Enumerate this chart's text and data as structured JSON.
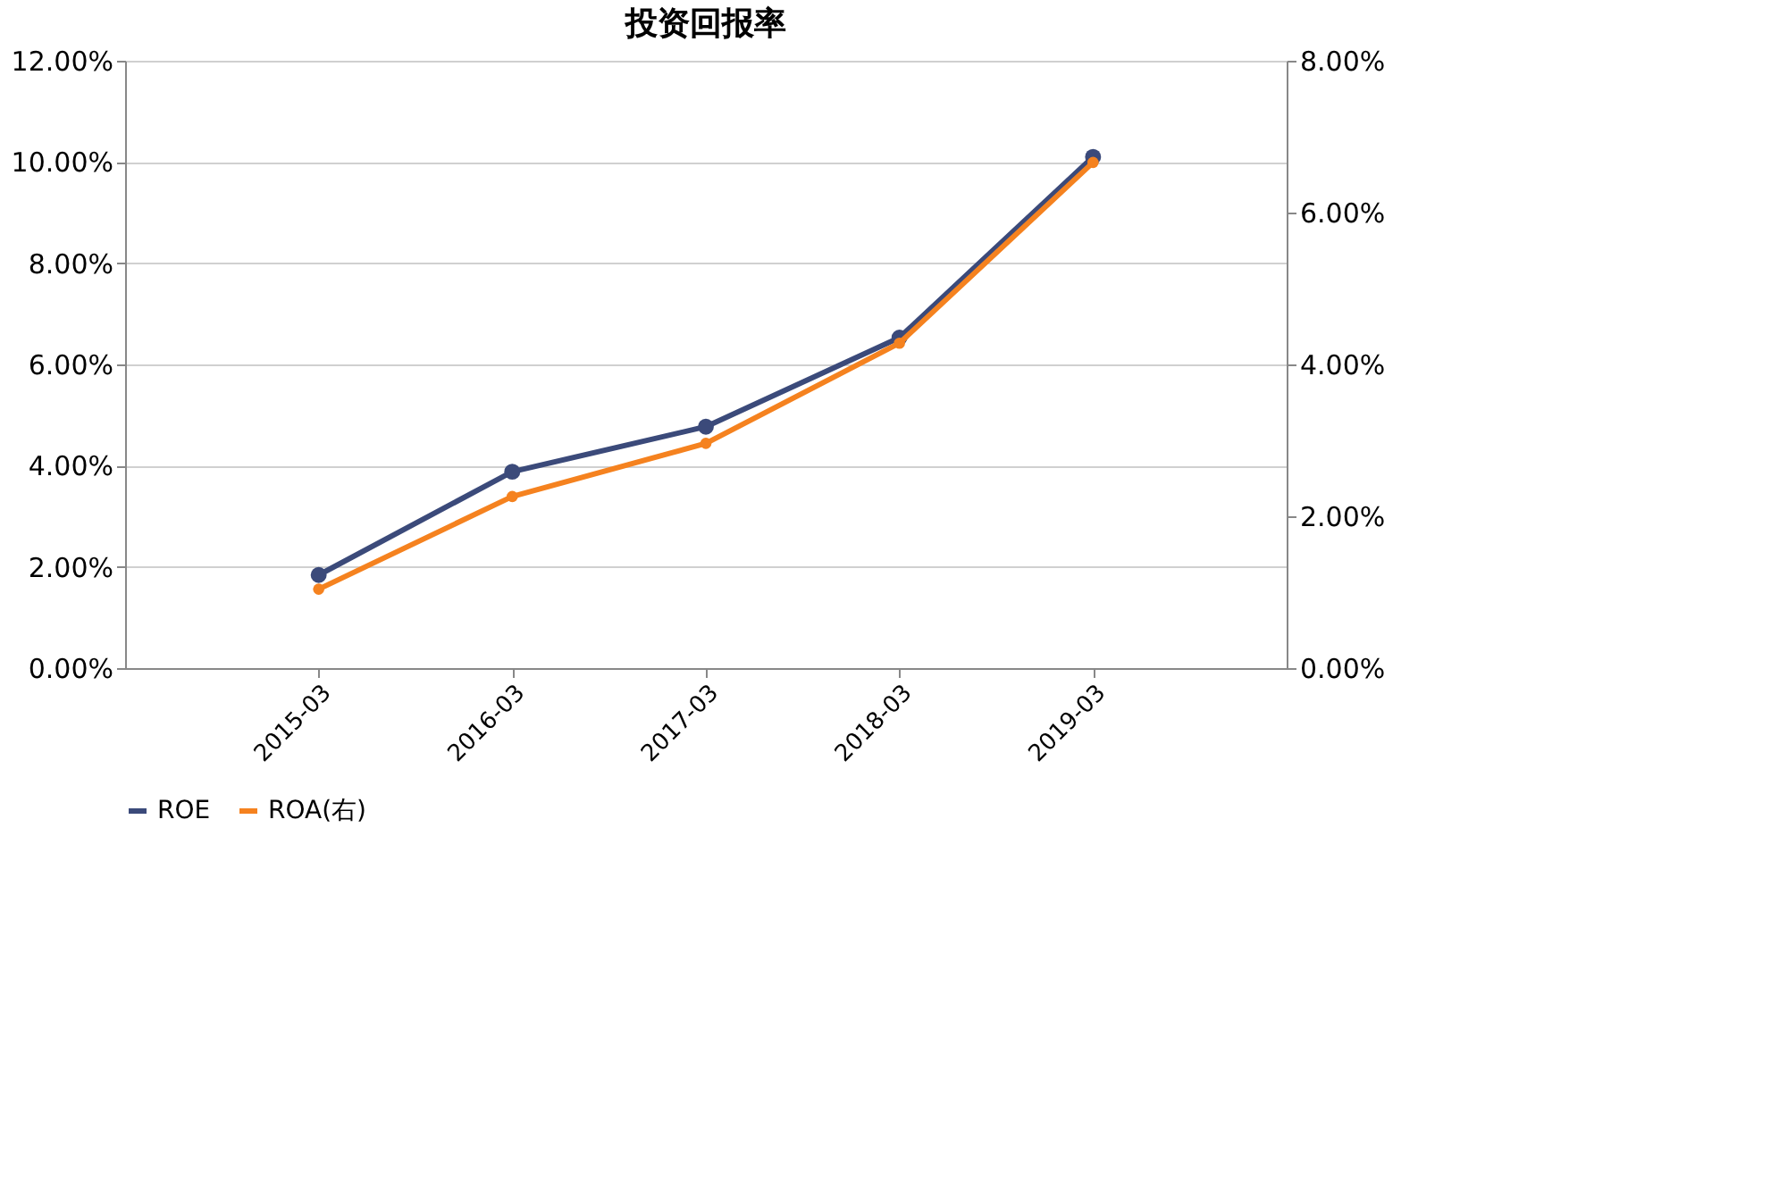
{
  "chart_data": {
    "type": "line",
    "title": "投资回报率",
    "categories": [
      "2015-03",
      "2016-03",
      "2017-03",
      "2018-03",
      "2019-03"
    ],
    "series": [
      {
        "name": "ROE",
        "color": "#3b4a7a",
        "values": [
          1.84,
          3.88,
          4.77,
          6.53,
          10.1
        ]
      },
      {
        "name": "ROA(右)",
        "color": "#f5821f",
        "axis": "y2",
        "values": [
          1.04,
          2.26,
          2.96,
          4.28,
          6.66
        ]
      }
    ],
    "ylim": [
      0,
      12
    ],
    "yticks": [
      {
        "value": 0,
        "label": "0.00%"
      },
      {
        "value": 2,
        "label": "2.00%"
      },
      {
        "value": 4,
        "label": "4.00%"
      },
      {
        "value": 6,
        "label": "6.00%"
      },
      {
        "value": 8,
        "label": "8.00%"
      },
      {
        "value": 10,
        "label": "10.00%"
      },
      {
        "value": 12,
        "label": "12.00%"
      }
    ],
    "y2lim": [
      0,
      8
    ],
    "y2ticks": [
      {
        "value": 0,
        "label": "0.00%"
      },
      {
        "value": 2,
        "label": "2.00%"
      },
      {
        "value": 4,
        "label": "4.00%"
      },
      {
        "value": 6,
        "label": "6.00%"
      },
      {
        "value": 8,
        "label": "8.00%"
      }
    ],
    "grid": "y",
    "legend": "bottom",
    "marker": "circle",
    "line_style": "solid"
  }
}
